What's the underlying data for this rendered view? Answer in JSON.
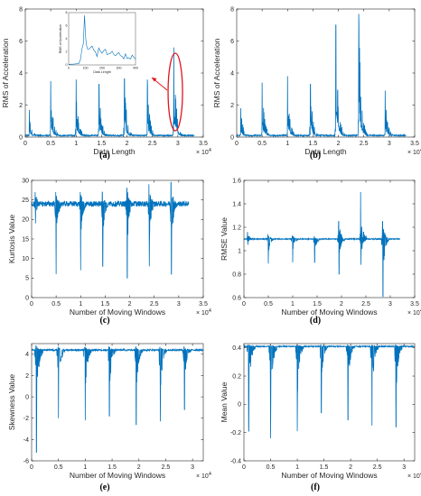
{
  "colors": {
    "series": "#0072BD",
    "axis": "#262626",
    "annotation": "#e0141e"
  },
  "chart_data": [
    {
      "id": "a",
      "type": "line",
      "caption": "(a)",
      "xlabel": "Data Length",
      "ylabel": "RMS of Acceleration",
      "xlim": [
        0,
        35000
      ],
      "ylim": [
        0,
        8
      ],
      "x_exponent": "× 10^4",
      "xticks": [
        0,
        5000,
        10000,
        15000,
        20000,
        25000,
        30000,
        35000
      ],
      "xticklabels": [
        "0",
        "0.5",
        "1",
        "1.5",
        "2",
        "2.5",
        "3",
        "3.5"
      ],
      "yticks": [
        0,
        2,
        4,
        6,
        8
      ],
      "yticklabels": [
        "0",
        "2",
        "4",
        "6",
        "8"
      ],
      "pattern": "bursts",
      "base": 0.1,
      "bursts": [
        {
          "x": 800,
          "peak": 1.7
        },
        {
          "x": 5000,
          "peak": 3.5
        },
        {
          "x": 10000,
          "peak": 3.6
        },
        {
          "x": 14500,
          "peak": 3.3
        },
        {
          "x": 19500,
          "peak": 3.7
        },
        {
          "x": 24000,
          "peak": 3.6
        },
        {
          "x": 29200,
          "peak": 5.6
        }
      ],
      "highlight": {
        "x": 29500,
        "label": "inset zoom of highlighted burst"
      },
      "inset": {
        "xlabel": "Data Length",
        "ylabel": "RMS of Acceleration",
        "xlim": [
          0,
          400
        ],
        "ylim": [
          0,
          8
        ],
        "xticks": [
          0,
          100,
          200,
          300,
          400
        ],
        "xticklabels": [
          "0",
          "100",
          "200",
          "300",
          "400"
        ],
        "yticks": [
          0,
          2,
          4,
          6,
          8
        ],
        "yticklabels": [
          "0",
          "2",
          "4",
          "6",
          "8"
        ],
        "x": [
          0,
          60,
          80,
          95,
          105,
          120,
          140,
          160,
          180,
          200,
          220,
          240,
          260,
          280,
          300,
          320,
          340,
          360,
          380,
          400
        ],
        "y": [
          0.1,
          0.2,
          2.5,
          7.6,
          3.2,
          2.4,
          2.9,
          2.0,
          2.6,
          1.8,
          2.4,
          1.7,
          2.1,
          1.4,
          1.9,
          1.3,
          1.7,
          1.1,
          1.5,
          0.9
        ]
      }
    },
    {
      "id": "b",
      "type": "line",
      "caption": "(b)",
      "xlabel": "Data Length",
      "ylabel": "RMS of Acceleration",
      "xlim": [
        0,
        35000
      ],
      "ylim": [
        0,
        8
      ],
      "x_exponent": "× 10^4",
      "xticks": [
        0,
        5000,
        10000,
        15000,
        20000,
        25000,
        30000,
        35000
      ],
      "xticklabels": [
        "0",
        "0.5",
        "1",
        "1.5",
        "2",
        "2.5",
        "3",
        "3.5"
      ],
      "yticks": [
        0,
        2,
        4,
        6,
        8
      ],
      "yticklabels": [
        "0",
        "2",
        "4",
        "6",
        "8"
      ],
      "pattern": "bursts",
      "base": 0.1,
      "bursts": [
        {
          "x": 800,
          "peak": 1.8
        },
        {
          "x": 5000,
          "peak": 3.4
        },
        {
          "x": 10000,
          "peak": 3.8
        },
        {
          "x": 14500,
          "peak": 3.3
        },
        {
          "x": 19500,
          "peak": 7.0
        },
        {
          "x": 24000,
          "peak": 7.7
        },
        {
          "x": 29200,
          "peak": 2.9
        }
      ]
    },
    {
      "id": "c",
      "type": "line",
      "caption": "(c)",
      "xlabel": "Number of Moving Windows",
      "ylabel": "Kurtosis Value",
      "xlim": [
        0,
        35000
      ],
      "ylim": [
        0,
        30
      ],
      "x_exponent": "× 10^4",
      "xticks": [
        0,
        5000,
        10000,
        15000,
        20000,
        25000,
        30000,
        35000
      ],
      "xticklabels": [
        "0",
        "0.5",
        "1",
        "1.5",
        "2",
        "2.5",
        "3",
        "3.5"
      ],
      "yticks": [
        0,
        5,
        10,
        15,
        20,
        25,
        30
      ],
      "yticklabels": [
        "0",
        "5",
        "10",
        "15",
        "20",
        "25",
        "30"
      ],
      "pattern": "dips",
      "base": 24,
      "noise": 0.7,
      "x_end": 32000,
      "events": [
        {
          "x": 800,
          "min": 19,
          "max": 27
        },
        {
          "x": 5000,
          "min": 6,
          "max": 27
        },
        {
          "x": 10000,
          "min": 7,
          "max": 27
        },
        {
          "x": 14500,
          "min": 8,
          "max": 27
        },
        {
          "x": 19500,
          "min": 5,
          "max": 28
        },
        {
          "x": 24000,
          "min": 8,
          "max": 29
        },
        {
          "x": 28500,
          "min": 6,
          "max": 29.5
        }
      ]
    },
    {
      "id": "d",
      "type": "line",
      "caption": "(d)",
      "xlabel": "Number of Moving Windows",
      "ylabel": "RMSE Value",
      "xlim": [
        0,
        35000
      ],
      "ylim": [
        0.6,
        1.6
      ],
      "x_exponent": "× 10^4",
      "xticks": [
        0,
        5000,
        10000,
        15000,
        20000,
        25000,
        30000,
        35000
      ],
      "xticklabels": [
        "0",
        "0.5",
        "1",
        "1.5",
        "2",
        "2.5",
        "3",
        "3.5"
      ],
      "yticks": [
        0.6,
        0.8,
        1.0,
        1.2,
        1.4,
        1.6
      ],
      "yticklabels": [
        "0.6",
        "0.8",
        "1",
        "1.2",
        "1.4",
        "1.6"
      ],
      "pattern": "dips",
      "base": 1.1,
      "noise": 0.004,
      "x_end": 32000,
      "events": [
        {
          "x": 800,
          "min": 1.05,
          "max": 1.16
        },
        {
          "x": 5000,
          "min": 0.89,
          "max": 1.14
        },
        {
          "x": 10000,
          "min": 0.9,
          "max": 1.13
        },
        {
          "x": 14500,
          "min": 0.9,
          "max": 1.12
        },
        {
          "x": 19500,
          "min": 0.8,
          "max": 1.25
        },
        {
          "x": 24000,
          "min": 0.88,
          "max": 1.5
        },
        {
          "x": 28500,
          "min": 0.61,
          "max": 1.25
        }
      ]
    },
    {
      "id": "e",
      "type": "line",
      "caption": "(e)",
      "xlabel": "Number of Moving Windows",
      "ylabel": "Skewness Value",
      "xlim": [
        0,
        32000
      ],
      "ylim": [
        -6,
        5
      ],
      "x_exponent": "× 10^4",
      "xticks": [
        0,
        5000,
        10000,
        15000,
        20000,
        25000,
        30000
      ],
      "xticklabels": [
        "0",
        "0.5",
        "1",
        "1.5",
        "2",
        "2.5",
        "3"
      ],
      "yticks": [
        -6,
        -4,
        -2,
        0,
        2,
        4
      ],
      "yticklabels": [
        "-6",
        "-4",
        "-2",
        "0",
        "2",
        "4"
      ],
      "pattern": "dips",
      "base": 4.4,
      "noise": 0.08,
      "x_end": 32000,
      "events": [
        {
          "x": 900,
          "min": -5.2,
          "max": 4.8
        },
        {
          "x": 5000,
          "min": -2.0,
          "max": 4.7
        },
        {
          "x": 10000,
          "min": -2.2,
          "max": 4.7
        },
        {
          "x": 14500,
          "min": -1.8,
          "max": 4.7
        },
        {
          "x": 19500,
          "min": -2.6,
          "max": 4.7
        },
        {
          "x": 24000,
          "min": -2.3,
          "max": 4.7
        },
        {
          "x": 28500,
          "min": -1.2,
          "max": 4.7
        }
      ]
    },
    {
      "id": "f",
      "type": "line",
      "caption": "(f)",
      "xlabel": "Number of Moving Windows",
      "ylabel": "Mean Value",
      "xlim": [
        0,
        32000
      ],
      "ylim": [
        -0.4,
        0.43
      ],
      "x_exponent": "× 10^4",
      "xticks": [
        0,
        5000,
        10000,
        15000,
        20000,
        25000,
        30000
      ],
      "xticklabels": [
        "0",
        "0.5",
        "1",
        "1.5",
        "2",
        "2.5",
        "3"
      ],
      "yticks": [
        -0.4,
        -0.2,
        0,
        0.2,
        0.4
      ],
      "yticklabels": [
        "-0.4",
        "-0.2",
        "0",
        "0.2",
        "0.4"
      ],
      "pattern": "dips",
      "base": 0.41,
      "noise": 0.004,
      "x_end": 32000,
      "events": [
        {
          "x": 900,
          "min": -0.19,
          "max": 0.42
        },
        {
          "x": 5000,
          "min": -0.24,
          "max": 0.42
        },
        {
          "x": 10000,
          "min": -0.19,
          "max": 0.42
        },
        {
          "x": 14500,
          "min": -0.06,
          "max": 0.42
        },
        {
          "x": 19500,
          "min": -0.11,
          "max": 0.42
        },
        {
          "x": 24000,
          "min": -0.15,
          "max": 0.42
        },
        {
          "x": 28500,
          "min": -0.16,
          "max": 0.42
        }
      ]
    }
  ]
}
